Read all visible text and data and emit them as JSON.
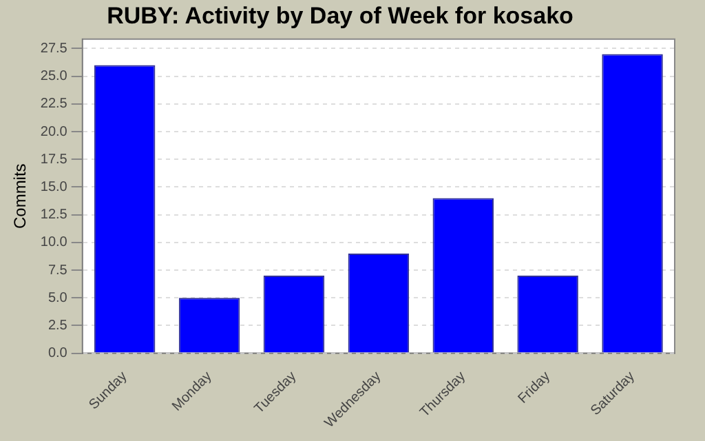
{
  "chart_data": {
    "type": "bar",
    "title": "RUBY: Activity by Day of Week for kosako",
    "ylabel": "Commits",
    "categories": [
      "Sunday",
      "Monday",
      "Tuesday",
      "Wednesday",
      "Thursday",
      "Friday",
      "Saturday"
    ],
    "values": [
      26,
      5,
      7,
      9,
      14,
      7,
      27
    ],
    "color": "#0000ff",
    "ylim": [
      0,
      28.35
    ],
    "yticks": [
      {
        "value": 0,
        "label": "0.0"
      },
      2.5,
      {
        "value": 5,
        "label": "5.0"
      },
      7.5,
      {
        "value": 10,
        "label": "10.0"
      },
      12.5,
      {
        "value": 15,
        "label": "15.0"
      },
      17.5,
      {
        "value": 20,
        "label": "20.0"
      },
      22.5,
      {
        "value": 25,
        "label": "25.0"
      },
      27.5
    ],
    "grid": "y",
    "legend": false
  }
}
